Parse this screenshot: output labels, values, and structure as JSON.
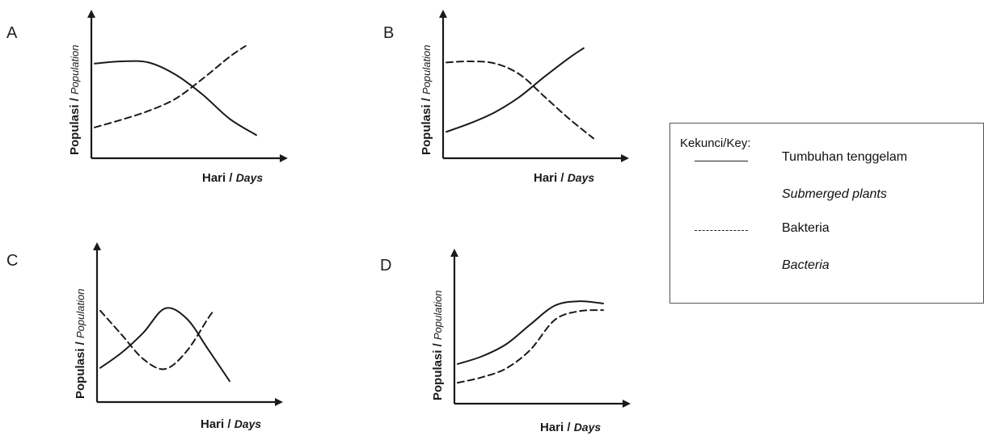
{
  "chart_data": [
    {
      "panel": "A",
      "type": "line",
      "ylabel": "Populasi / Population",
      "xlabel": "Hari / Days",
      "series": [
        {
          "name": "Tumbuhan tenggelam / Submerged plants",
          "style": "solid",
          "x": [
            0,
            1,
            2,
            3,
            4,
            5,
            6
          ],
          "values": [
            8.6,
            8.8,
            8.7,
            7.6,
            5.8,
            3.6,
            2.1
          ]
        },
        {
          "name": "Bakteria / Bacteria",
          "style": "dashed",
          "x": [
            0,
            1,
            2,
            3,
            4,
            5,
            5.6
          ],
          "values": [
            2.8,
            3.5,
            4.3,
            5.4,
            7.2,
            9.2,
            10.2
          ]
        }
      ]
    },
    {
      "panel": "B",
      "type": "line",
      "ylabel": "Populasi / Population",
      "xlabel": "Hari / Days",
      "series": [
        {
          "name": "Tumbuhan tenggelam / Submerged plants",
          "style": "solid",
          "x": [
            0,
            1,
            2,
            3,
            4,
            5,
            5.6
          ],
          "values": [
            2.4,
            3.2,
            4.2,
            5.6,
            7.4,
            9.1,
            10.0
          ]
        },
        {
          "name": "Bakteria / Bacteria",
          "style": "dashed",
          "x": [
            0,
            1,
            2,
            3,
            4,
            5,
            6
          ],
          "values": [
            8.7,
            8.8,
            8.6,
            7.6,
            5.6,
            3.6,
            1.8
          ]
        }
      ]
    },
    {
      "panel": "C",
      "type": "line",
      "ylabel": "Populasi / Population",
      "xlabel": "Hari / Days",
      "series": [
        {
          "name": "Tumbuhan tenggelam / Submerged plants",
          "style": "solid",
          "x": [
            0,
            1,
            2,
            3,
            4,
            5,
            6
          ],
          "values": [
            3.1,
            4.5,
            6.3,
            8.5,
            7.6,
            4.8,
            1.9
          ]
        },
        {
          "name": "Bakteria / Bacteria",
          "style": "dashed",
          "x": [
            0,
            1,
            2,
            3,
            4,
            5,
            5.3
          ],
          "values": [
            8.3,
            6.1,
            3.9,
            3.0,
            4.6,
            7.6,
            8.4
          ]
        }
      ]
    },
    {
      "panel": "D",
      "type": "line",
      "ylabel": "Populasi / Population",
      "xlabel": "Hari / Days",
      "series": [
        {
          "name": "Tumbuhan tenggelam / Submerged plants",
          "style": "solid",
          "x": [
            0,
            1,
            2,
            3,
            4,
            5,
            6
          ],
          "values": [
            3.6,
            4.3,
            5.4,
            7.2,
            8.9,
            9.3,
            9.1
          ]
        },
        {
          "name": "Bakteria / Bacteria",
          "style": "dashed",
          "x": [
            0,
            1,
            2,
            3,
            4,
            5,
            6
          ],
          "values": [
            1.9,
            2.4,
            3.2,
            4.9,
            7.6,
            8.4,
            8.5
          ]
        }
      ]
    }
  ],
  "key": {
    "title": "Kekunci/Key:",
    "solid_label": "Tumbuhan tenggelam",
    "solid_label_en": "Submerged plants",
    "dashed_label": "Bakteria",
    "dashed_label_en": "Bacteria"
  },
  "panel_letters": [
    "A",
    "B",
    "C",
    "D"
  ],
  "axis_text": {
    "y_ms": "Populasi /",
    "y_en": "Population",
    "x_ms": "Hari /",
    "x_en": "Days"
  },
  "colors": {
    "line": "#1a1a1a",
    "background": "#ffffff"
  }
}
